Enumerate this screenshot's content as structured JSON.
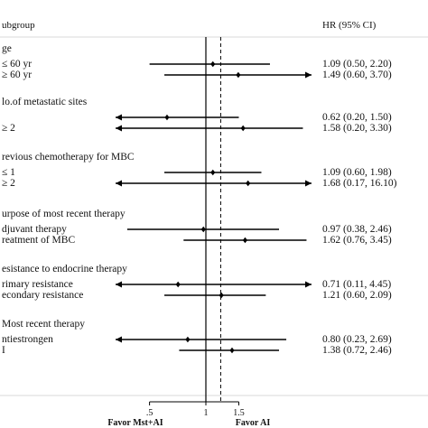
{
  "chart_data": {
    "type": "forest",
    "header_left": "ubgroup",
    "header_right": "HR (95% CI)",
    "x_ticks": [
      {
        "value": 0.5,
        "label": ".5"
      },
      {
        "value": 1,
        "label": "1"
      },
      {
        "value": 1.5,
        "label": "1.5"
      }
    ],
    "reference_line": 1,
    "overall_line": 1.2,
    "favor_left": "Favor Mst+AI",
    "favor_right": "Favor AI",
    "groups": [
      {
        "title": "ge",
        "rows": [
          {
            "label": "≤ 60 yr",
            "hr": 1.09,
            "lo": 0.5,
            "hi": 2.2,
            "text": "1.09 (0.50, 2.20)"
          },
          {
            "label": "≥ 60 yr",
            "hr": 1.49,
            "lo": 0.6,
            "hi": 3.7,
            "text": "1.49 (0.60, 3.70)"
          }
        ]
      },
      {
        "title": "lo.of metastatic sites",
        "rows": [
          {
            "label": "",
            "hr": 0.62,
            "lo": 0.2,
            "hi": 1.5,
            "text": "0.62 (0.20, 1.50)"
          },
          {
            "label": "≥ 2",
            "hr": 1.58,
            "lo": 0.2,
            "hi": 3.3,
            "text": "1.58 (0.20, 3.30)"
          }
        ]
      },
      {
        "title": "revious chemotherapy for MBC",
        "rows": [
          {
            "label": "≤ 1",
            "hr": 1.09,
            "lo": 0.6,
            "hi": 1.98,
            "text": "1.09 (0.60, 1.98)"
          },
          {
            "label": "≥ 2",
            "hr": 1.68,
            "lo": 0.17,
            "hi": 16.1,
            "text": "1.68 (0.17, 16.10)"
          }
        ]
      },
      {
        "title": "urpose of most recent therapy",
        "rows": [
          {
            "label": "djuvant therapy",
            "hr": 0.97,
            "lo": 0.38,
            "hi": 2.46,
            "text": "0.97 (0.38, 2.46)"
          },
          {
            "label": "reatment of MBC",
            "hr": 1.62,
            "lo": 0.76,
            "hi": 3.45,
            "text": "1.62 (0.76, 3.45)"
          }
        ]
      },
      {
        "title": "esistance to endocrine therapy",
        "rows": [
          {
            "label": "rimary resistance",
            "hr": 0.71,
            "lo": 0.11,
            "hi": 4.45,
            "text": "0.71 (0.11, 4.45)"
          },
          {
            "label": "econdary resistance",
            "hr": 1.21,
            "lo": 0.6,
            "hi": 2.09,
            "text": "1.21 (0.60, 2.09)"
          }
        ]
      },
      {
        "title": "Most recent therapy",
        "rows": [
          {
            "label": "ntiestrongen",
            "hr": 0.8,
            "lo": 0.23,
            "hi": 2.69,
            "text": "0.80 (0.23, 2.69)"
          },
          {
            "label": "I",
            "hr": 1.38,
            "lo": 0.72,
            "hi": 2.46,
            "text": "1.38 (0.72, 2.46)"
          }
        ]
      }
    ]
  }
}
